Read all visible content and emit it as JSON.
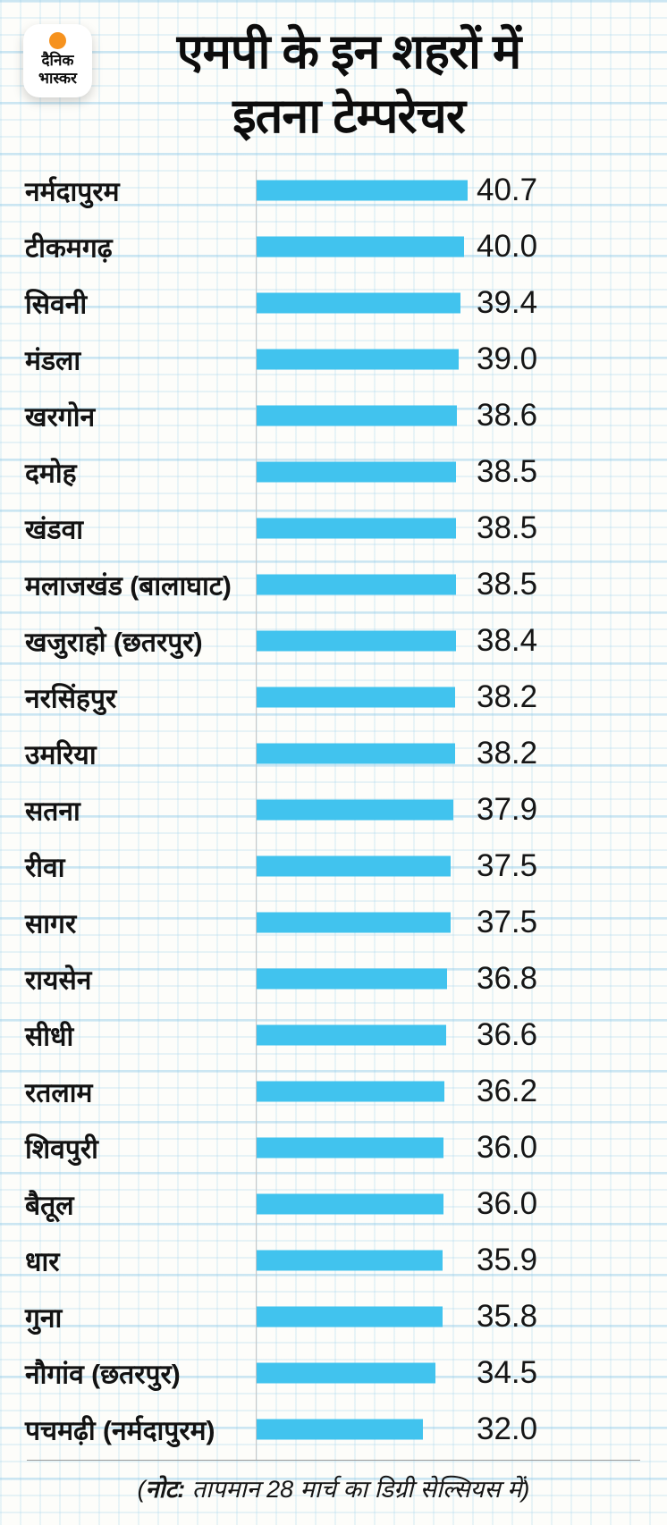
{
  "logo": {
    "name": "dainik-bhaskar",
    "line1": "दैनिक",
    "line2": "भास्कर",
    "sun_color": "#f6921e"
  },
  "header": {
    "title_line1": "एमपी के इन शहरों में",
    "title_line2": "इतना टेम्परेचर"
  },
  "footer": {
    "note_open": "(",
    "note_label": "नोट:",
    "note_body": " तापमान 28 मार्च का डिग्री सेल्सियस में)"
  },
  "colors": {
    "bar": "#41c3ee",
    "accent_orange": "#f6921e",
    "axis": "#c7c7c7",
    "grid_blue": "#a8d6ee",
    "text": "#111111"
  },
  "chart_data": {
    "type": "bar",
    "orientation": "horizontal",
    "title": "एमपी के इन शहरों में इतना टेम्परेचर",
    "note": "(नोट: तापमान 28 मार्च का डिग्री सेल्सियस में)",
    "unit": "डिग्री सेल्सियस",
    "xlim": [
      0,
      40.7
    ],
    "grid": true,
    "value_labels_position": "right",
    "categories": [
      "नर्मदापुरम",
      "टीकमगढ़",
      "सिवनी",
      "मंडला",
      "खरगोन",
      "दमोह",
      "खंडवा",
      "मलाजखंड (बालाघाट)",
      "खजुराहो (छतरपुर)",
      "नरसिंहपुर",
      "उमरिया",
      "सतना",
      "रीवा",
      "सागर",
      "रायसेन",
      "सीधी",
      "रतलाम",
      "शिवपुरी",
      "बैतूल",
      "धार",
      "गुना",
      "नौगांव (छतरपुर)",
      "पचमढ़ी (नर्मदापुरम)"
    ],
    "values": [
      40.7,
      40.0,
      39.4,
      39.0,
      38.6,
      38.5,
      38.5,
      38.5,
      38.4,
      38.2,
      38.2,
      37.9,
      37.5,
      37.5,
      36.8,
      36.6,
      36.2,
      36.0,
      36.0,
      35.9,
      35.8,
      34.5,
      32.0
    ],
    "value_labels": [
      "40.7",
      "40.0",
      "39.4",
      "39.0",
      "38.6",
      "38.5",
      "38.5",
      "38.5",
      "38.4",
      "38.2",
      "38.2",
      "37.9",
      "37.5",
      "37.5",
      "36.8",
      "36.6",
      "36.2",
      "36.0",
      "36.0",
      "35.9",
      "35.8",
      "34.5",
      "32.0"
    ]
  }
}
